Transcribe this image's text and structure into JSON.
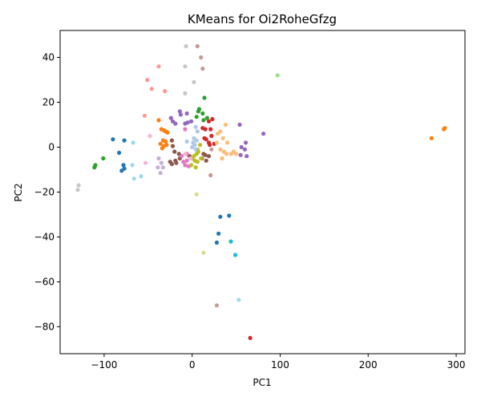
{
  "chart_data": {
    "type": "scatter",
    "title": "KMeans for Oi2RoheGfzg",
    "xlabel": "PC1",
    "ylabel": "PC2",
    "xlim": [
      -150,
      310
    ],
    "ylim": [
      -92,
      52
    ],
    "x_ticks": [
      -100,
      0,
      100,
      200,
      300
    ],
    "y_ticks": [
      -80,
      -60,
      -40,
      -20,
      0,
      20,
      40
    ],
    "grid": false,
    "legend": "none",
    "palette": {
      "c0": "#1f77b4",
      "c1": "#ff7f0e",
      "c2": "#2ca02c",
      "c3": "#d62728",
      "c4": "#9467bd",
      "c5": "#8c564b",
      "c6": "#e377c2",
      "c7": "#7f7f7f",
      "c8": "#bcbd22",
      "c9": "#17becf",
      "c10": "#aec7e8",
      "c11": "#ffbb78",
      "c12": "#98df8a",
      "c13": "#ff9896",
      "c14": "#c5b0d5",
      "c15": "#c49c94",
      "c16": "#f7b6d2",
      "c17": "#c7c7c7",
      "c18": "#dbdb8d",
      "c19": "#9edae5"
    },
    "series": [
      {
        "color": "#1f77b4",
        "points": [
          [
            -90,
            3.5
          ],
          [
            -77,
            3
          ],
          [
            -83,
            -2.5
          ],
          [
            -78,
            -8
          ],
          [
            -80,
            -10.5
          ],
          [
            -77,
            -9.5
          ],
          [
            32,
            -31
          ],
          [
            42,
            -30.5
          ],
          [
            30,
            -38.5
          ],
          [
            28,
            -42.5
          ]
        ]
      },
      {
        "color": "#ff7f0e",
        "points": [
          [
            -38,
            12
          ],
          [
            -35,
            8
          ],
          [
            -32,
            7.5
          ],
          [
            -30,
            7
          ],
          [
            -28,
            6.5
          ],
          [
            -33,
            3
          ],
          [
            -30,
            2.5
          ],
          [
            -36,
            1.5
          ],
          [
            -32,
            0.5
          ],
          [
            -29,
            1
          ],
          [
            -34,
            -0.5
          ],
          [
            272,
            4
          ],
          [
            287,
            8.5
          ],
          [
            286,
            8
          ]
        ]
      },
      {
        "color": "#2ca02c",
        "points": [
          [
            14,
            22
          ],
          [
            7,
            16
          ],
          [
            8,
            17
          ],
          [
            12,
            15
          ],
          [
            5,
            13.5
          ],
          [
            13,
            12
          ],
          [
            17,
            13
          ],
          [
            -101,
            -5
          ],
          [
            -110,
            -8
          ],
          [
            -111,
            -9
          ]
        ]
      },
      {
        "color": "#d62728",
        "points": [
          [
            23,
            12.5
          ],
          [
            19,
            11.5
          ],
          [
            21,
            8
          ],
          [
            12,
            8.5
          ],
          [
            15,
            8
          ],
          [
            22,
            5
          ],
          [
            16,
            3.5
          ],
          [
            19,
            2
          ],
          [
            25,
            1.5
          ],
          [
            20,
            1
          ],
          [
            14,
            4
          ],
          [
            66,
            -85
          ]
        ]
      },
      {
        "color": "#9467bd",
        "points": [
          [
            -14,
            16
          ],
          [
            -13,
            14.5
          ],
          [
            -6,
            15
          ],
          [
            -24,
            13
          ],
          [
            -22,
            11.5
          ],
          [
            -19,
            10.5
          ],
          [
            -8,
            10.5
          ],
          [
            -5,
            11
          ],
          [
            -1,
            11.5
          ],
          [
            54,
            10
          ],
          [
            81,
            6
          ],
          [
            61,
            2
          ],
          [
            56,
            0
          ],
          [
            60,
            -1
          ],
          [
            55,
            -3.5
          ],
          [
            62,
            -4
          ]
        ]
      },
      {
        "color": "#8c564b",
        "points": [
          [
            -23,
            3
          ],
          [
            -22,
            0.5
          ],
          [
            -20,
            -2
          ],
          [
            -15,
            -3
          ],
          [
            -14,
            -5
          ],
          [
            -19,
            -6
          ],
          [
            -25,
            -6.5
          ],
          [
            -23,
            -7.5
          ],
          [
            -18,
            -7
          ],
          [
            -12,
            -4
          ],
          [
            -3,
            -4
          ],
          [
            13,
            -3
          ],
          [
            11,
            -5
          ],
          [
            16,
            -6
          ],
          [
            19,
            -4
          ],
          [
            15,
            -3.5
          ]
        ]
      },
      {
        "color": "#e377c2",
        "points": [
          [
            -8,
            8
          ],
          [
            -12,
            -4
          ],
          [
            -6,
            -3
          ],
          [
            -10,
            -6.5
          ],
          [
            -8,
            -8
          ],
          [
            -4,
            -8.5
          ],
          [
            -6,
            -6
          ]
        ]
      },
      {
        "color": "#bcbd22",
        "points": [
          [
            9,
            1
          ],
          [
            6,
            -1
          ],
          [
            7,
            -2
          ],
          [
            5,
            -3
          ],
          [
            2,
            -4
          ],
          [
            0,
            -5
          ],
          [
            3,
            -6
          ],
          [
            6,
            -6.5
          ],
          [
            10,
            -5
          ],
          [
            -1,
            -8
          ],
          [
            4,
            -9
          ]
        ]
      },
      {
        "color": "#17becf",
        "points": [
          [
            44,
            -42
          ],
          [
            49,
            -48
          ]
        ]
      },
      {
        "color": "#aec7e8",
        "points": [
          [
            4,
            9
          ],
          [
            6,
            7
          ],
          [
            2,
            4
          ],
          [
            5,
            3
          ],
          [
            1,
            2
          ],
          [
            3,
            1
          ],
          [
            0,
            0
          ],
          [
            4,
            -1
          ],
          [
            -6,
            2.5
          ]
        ]
      },
      {
        "color": "#ffbb78",
        "points": [
          [
            38,
            10
          ],
          [
            32,
            7
          ],
          [
            35,
            4
          ],
          [
            29,
            6
          ],
          [
            28,
            2
          ],
          [
            40,
            2
          ],
          [
            32,
            -1
          ],
          [
            36,
            -2
          ],
          [
            39,
            -3
          ],
          [
            44,
            -3
          ],
          [
            47,
            -2
          ],
          [
            50,
            -3
          ],
          [
            34,
            -5
          ]
        ]
      },
      {
        "color": "#98df8a",
        "points": [
          [
            97,
            32
          ]
        ]
      },
      {
        "color": "#ff9896",
        "points": [
          [
            -51,
            30
          ],
          [
            -46,
            26
          ],
          [
            -31,
            25
          ],
          [
            -38,
            36
          ],
          [
            -54,
            14
          ]
        ]
      },
      {
        "color": "#c5b0d5",
        "points": [
          [
            -38,
            -5
          ],
          [
            -35,
            -7
          ],
          [
            -33,
            -9
          ],
          [
            -39,
            -9
          ],
          [
            -36,
            -11.5
          ]
        ]
      },
      {
        "color": "#c49c94",
        "points": [
          [
            6,
            45
          ],
          [
            10,
            40
          ],
          [
            12,
            35
          ],
          [
            22,
            -1
          ],
          [
            21,
            -12.5
          ],
          [
            28,
            -70.5
          ]
        ]
      },
      {
        "color": "#f7b6d2",
        "points": [
          [
            -48,
            5
          ],
          [
            -8,
            -3
          ],
          [
            -2,
            -5
          ],
          [
            -53,
            -7
          ]
        ]
      },
      {
        "color": "#c7c7c7",
        "points": [
          [
            -7,
            45
          ],
          [
            -8,
            36
          ],
          [
            2,
            29
          ],
          [
            -8,
            24
          ],
          [
            -129,
            -17
          ],
          [
            -130,
            -19
          ]
        ]
      },
      {
        "color": "#dbdb8d",
        "points": [
          [
            5,
            -21
          ],
          [
            13,
            -47
          ]
        ]
      },
      {
        "color": "#9edae5",
        "points": [
          [
            -67,
            2
          ],
          [
            -58,
            -13
          ],
          [
            -66,
            -14
          ],
          [
            -68,
            -8
          ],
          [
            53,
            -68
          ]
        ]
      }
    ]
  }
}
